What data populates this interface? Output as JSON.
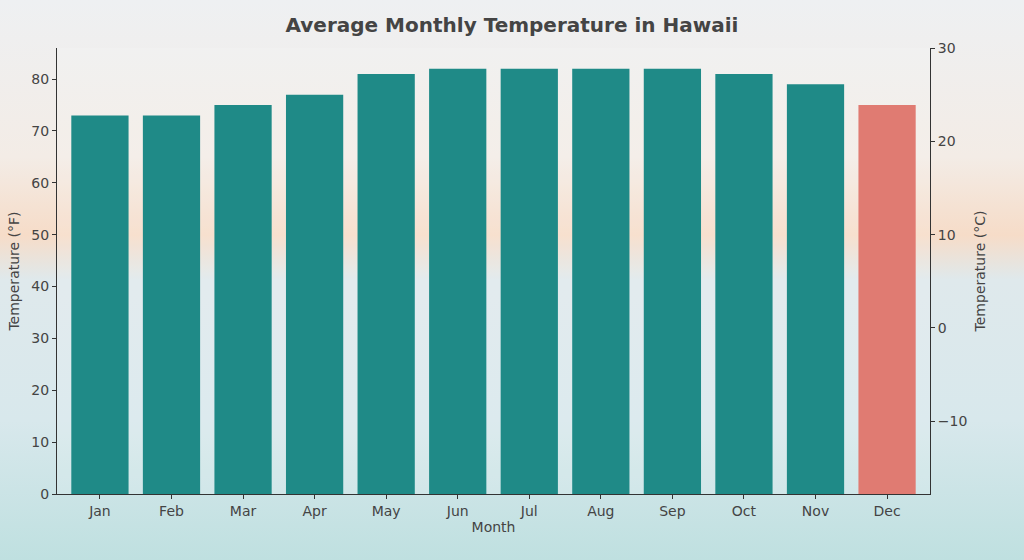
{
  "chart_data": {
    "type": "bar",
    "title": "Average Monthly Temperature in Hawaii",
    "x_label": "Month",
    "y_label": "Temperature (°F)",
    "y2_label": "Temperature (°C)",
    "categories": [
      "Jan",
      "Feb",
      "Mar",
      "Apr",
      "May",
      "Jun",
      "Jul",
      "Aug",
      "Sep",
      "Oct",
      "Nov",
      "Dec"
    ],
    "values": [
      73,
      73,
      75,
      77,
      81,
      82,
      82,
      82,
      82,
      81,
      79,
      75
    ],
    "colors": [
      "#1f8a87",
      "#1f8a87",
      "#1f8a87",
      "#1f8a87",
      "#1f8a87",
      "#1f8a87",
      "#1f8a87",
      "#1f8a87",
      "#1f8a87",
      "#1f8a87",
      "#1f8a87",
      "#e07b72"
    ],
    "ylim": [
      0,
      86
    ],
    "yticks": [
      0,
      10,
      20,
      30,
      40,
      50,
      60,
      70,
      80
    ],
    "y2lim": [
      -17.8,
      30
    ],
    "y2ticks": [
      {
        "value": -10,
        "label": "−10"
      },
      0,
      10,
      20,
      30
    ],
    "grid": false
  }
}
